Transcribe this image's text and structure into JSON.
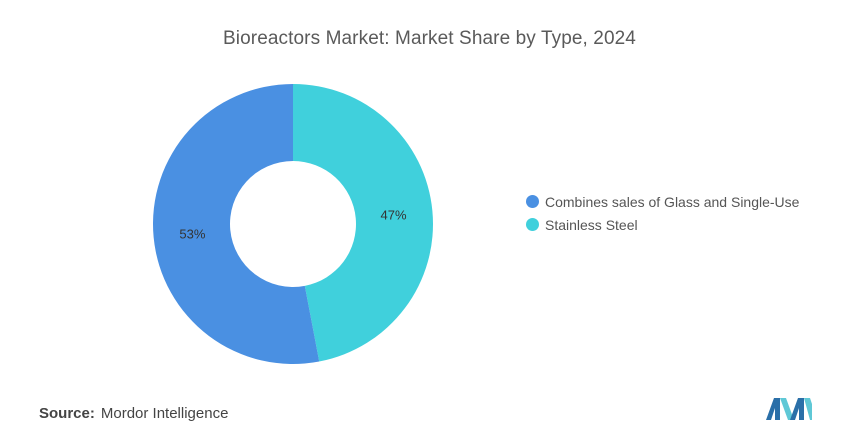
{
  "chart_data": {
    "type": "pie",
    "variant": "donut",
    "title": "Bioreactors Market: Market Share by Type, 2024",
    "categories": [
      "Stainless Steel",
      "Combines sales of Glass and Single-Use"
    ],
    "values": [
      47,
      53
    ],
    "value_labels": [
      "47%",
      "53%"
    ],
    "legend": {
      "placement": "right",
      "entries": [
        "Combines sales of Glass and Single-Use",
        "Stainless Steel"
      ]
    },
    "colors": {
      "Stainless Steel": "#40d0dc",
      "Combines sales of Glass and Single-Use": "#4a90e2"
    }
  },
  "source": {
    "label": "Source:",
    "text": "Mordor Intelligence"
  },
  "logo": {
    "icon": "mordor-intelligence-logo-icon",
    "colors": [
      "#2a6fa8",
      "#5fc8d6"
    ]
  }
}
